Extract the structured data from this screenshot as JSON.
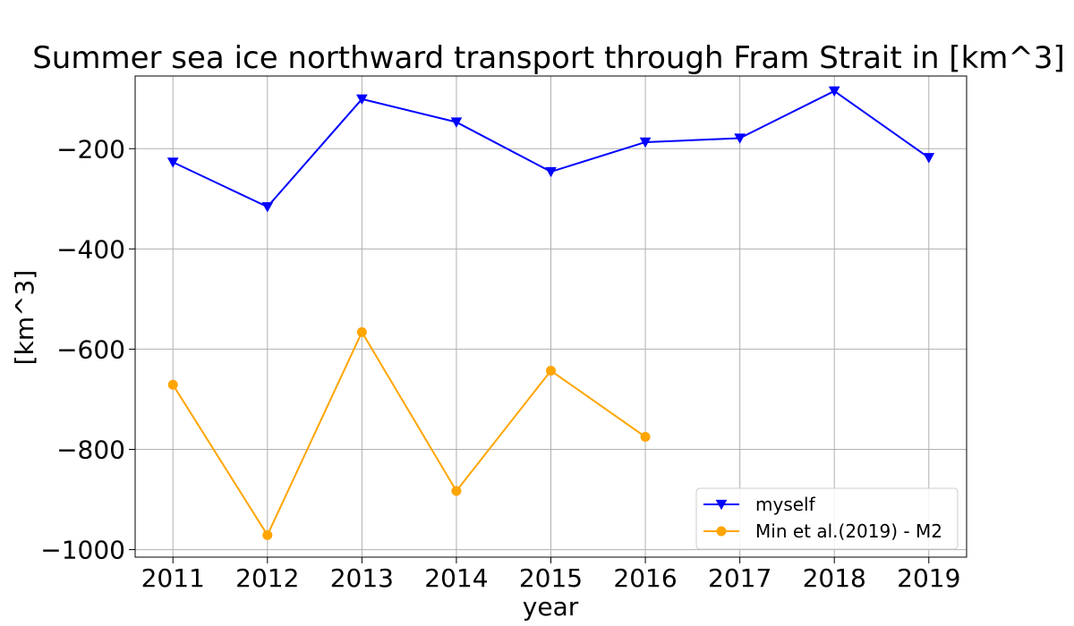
{
  "chart_data": {
    "type": "line",
    "title": "Summer sea ice northward transport through Fram Strait in [km^3]",
    "xlabel": "year",
    "ylabel": "[km^3]",
    "x": [
      2011,
      2012,
      2013,
      2014,
      2015,
      2016,
      2017,
      2018,
      2019
    ],
    "xlim": [
      2010.6,
      2019.4
    ],
    "ylim": [
      -1015,
      -55
    ],
    "yticks": [
      -1000,
      -800,
      -600,
      -400,
      -200
    ],
    "ytick_labels": [
      "−1000",
      "−800",
      "−600",
      "−400",
      "−200"
    ],
    "xticks": [
      2011,
      2012,
      2013,
      2014,
      2015,
      2016,
      2017,
      2018,
      2019
    ],
    "xtick_labels": [
      "2011",
      "2012",
      "2013",
      "2014",
      "2015",
      "2016",
      "2017",
      "2018",
      "2019"
    ],
    "grid": true,
    "legend_position": "lower-right",
    "series": [
      {
        "name": "myself",
        "color": "#0000ff",
        "marker": "triangle-down",
        "x": [
          2011,
          2012,
          2013,
          2014,
          2015,
          2016,
          2017,
          2018,
          2019
        ],
        "values": [
          -227,
          -316,
          -101,
          -147,
          -246,
          -187,
          -179,
          -85,
          -218
        ]
      },
      {
        "name": "Min et al.(2019) - M2",
        "color": "#ffa500",
        "marker": "circle",
        "x": [
          2011,
          2012,
          2013,
          2014,
          2015,
          2016
        ],
        "values": [
          -671,
          -971,
          -566,
          -883,
          -643,
          -775
        ]
      }
    ]
  }
}
